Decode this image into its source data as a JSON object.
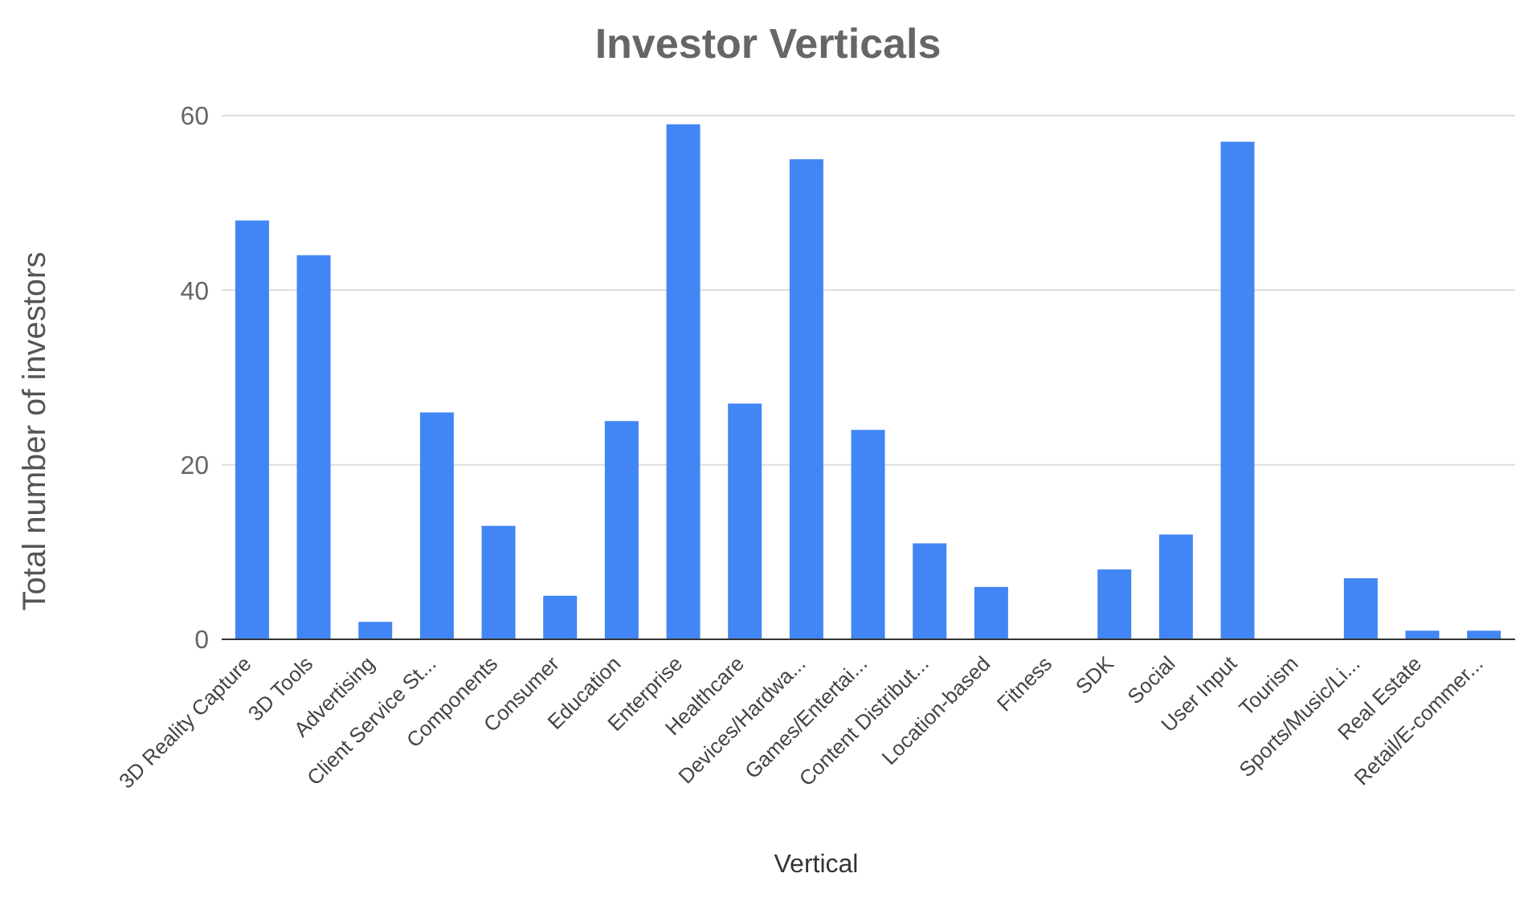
{
  "chart_data": {
    "type": "bar",
    "title": "Investor Verticals",
    "xlabel": "Vertical",
    "ylabel": "Total number of investors",
    "categories": [
      "3D Reality Capture",
      "3D Tools",
      "Advertising",
      "Client Service St...",
      "Components",
      "Consumer",
      "Education",
      "Enterprise",
      "Healthcare",
      "Devices/Hardwa...",
      "Games/Entertai...",
      "Content Distribut...",
      "Location-based",
      "Fitness",
      "SDK",
      "Social",
      "User Input",
      "Tourism",
      "Sports/Music/Li...",
      "Real Estate",
      "Retail/E-commer..."
    ],
    "values": [
      48,
      44,
      2,
      26,
      13,
      5,
      25,
      59,
      27,
      55,
      24,
      11,
      6,
      0,
      8,
      12,
      57,
      0,
      7,
      1,
      1
    ],
    "color": "#4285f4",
    "ylim": [
      0,
      60
    ],
    "yticks": [
      0,
      20,
      40,
      60
    ],
    "grid": "y"
  }
}
